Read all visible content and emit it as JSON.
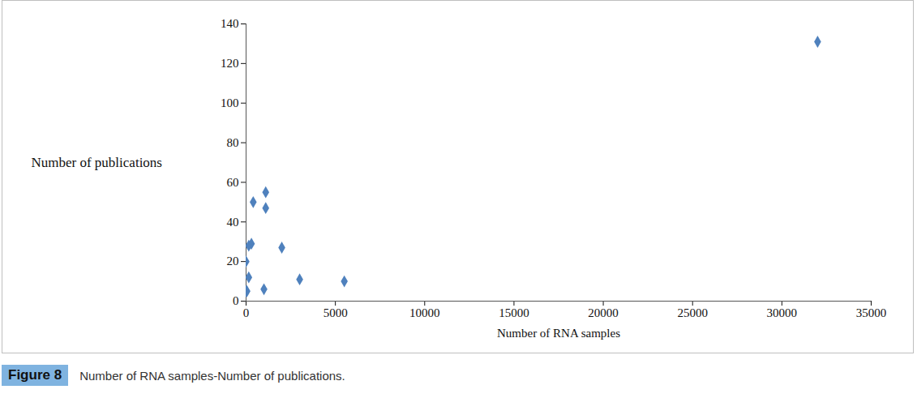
{
  "chart_data": {
    "type": "scatter",
    "caption_label": "Figure 8",
    "caption": "Number of RNA samples-Number of publications.",
    "x_label": "Number of RNA samples",
    "y_label": "Number of publications",
    "x": [
      32000,
      1100,
      400,
      1100,
      300,
      150,
      2000,
      0,
      150,
      3000,
      5500,
      1000,
      50,
      0
    ],
    "values": [
      131,
      55,
      50,
      47,
      29,
      28,
      27,
      20,
      12,
      11,
      10,
      6,
      5,
      5
    ],
    "color": "#4f81bd",
    "marker": "diamond",
    "xlim": [
      0,
      35000
    ],
    "xticks": [
      0,
      5000,
      10000,
      15000,
      20000,
      25000,
      30000,
      35000
    ],
    "ylim": [
      0,
      140
    ],
    "yticks": [
      0,
      20,
      40,
      60,
      80,
      100,
      120,
      140
    ],
    "grid": false
  }
}
